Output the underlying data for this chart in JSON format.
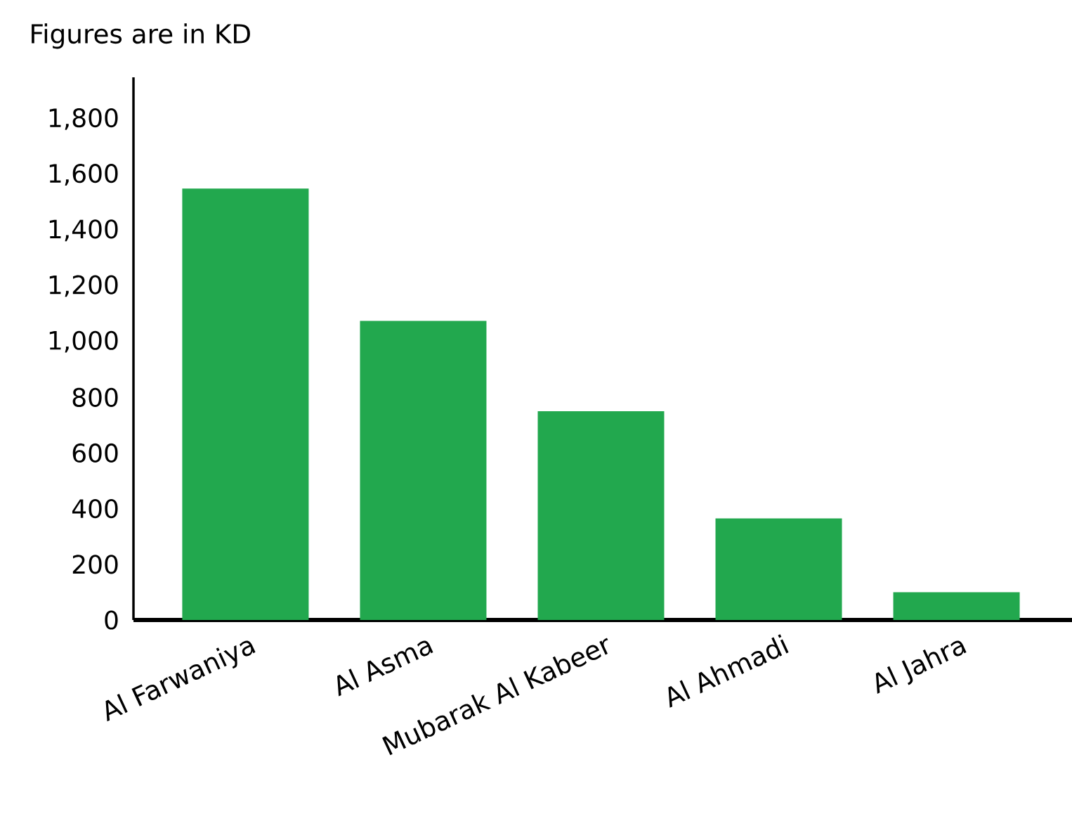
{
  "chart_data": {
    "type": "bar",
    "title": "Figures are in KD",
    "categories": [
      "Al Farwaniya",
      "Al Asma",
      "Mubarak Al Kabeer",
      "Al Ahmadi",
      "Al Jahra"
    ],
    "values": [
      1550,
      1075,
      750,
      365,
      100
    ],
    "color": "#22a84e",
    "ylim": [
      0,
      1950
    ],
    "yticks": [
      0,
      200,
      400,
      600,
      800,
      {
        "value": 1000,
        "label": "1,000"
      },
      {
        "value": 1200,
        "label": "1,200"
      },
      {
        "value": 1400,
        "label": "1,400"
      },
      {
        "value": 1600,
        "label": "1,600"
      },
      {
        "value": 1800,
        "label": "1,800"
      }
    ],
    "grid": false
  }
}
